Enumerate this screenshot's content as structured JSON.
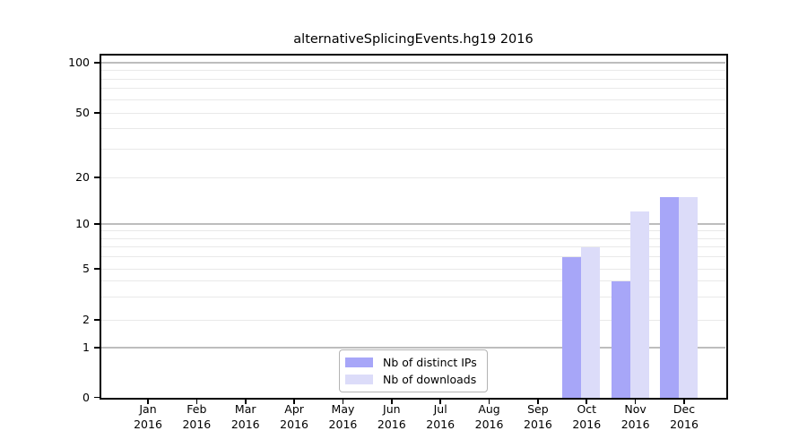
{
  "title": "alternativeSplicingEvents.hg19 2016",
  "chart_data": {
    "type": "bar",
    "title": "alternativeSplicingEvents.hg19 2016",
    "categories": [
      "Jan",
      "Feb",
      "Mar",
      "Apr",
      "May",
      "Jun",
      "Jul",
      "Aug",
      "Sep",
      "Oct",
      "Nov",
      "Dec"
    ],
    "x_year_label": "2016",
    "series": [
      {
        "name": "Nb of distinct IPs",
        "color": "#a7a6f8",
        "values": [
          0,
          0,
          0,
          0,
          0,
          0,
          0,
          0,
          0,
          6,
          4,
          15
        ]
      },
      {
        "name": "Nb of downloads",
        "color": "#dcdcf9",
        "values": [
          0,
          0,
          0,
          0,
          0,
          0,
          0,
          0,
          0,
          7,
          12,
          15
        ]
      }
    ],
    "xlabel": "",
    "ylabel": "",
    "y_axis": {
      "scale": "log-like, linear below 1",
      "ylim": [
        0,
        100
      ],
      "tick_labels": [
        "100",
        "50",
        "20",
        "10",
        "5",
        "2",
        "1",
        "0"
      ],
      "tick_values": [
        100,
        50,
        20,
        10,
        5,
        2,
        1,
        0
      ],
      "minor_gridline_values": [
        3,
        4,
        6,
        7,
        8,
        9,
        30,
        40,
        60,
        70,
        80,
        90
      ],
      "decade_gridline_values": [
        1,
        10,
        100
      ]
    },
    "grid": "horizontal gridlines on",
    "legend_position": "inside, bottom center"
  },
  "legend": {
    "items": [
      {
        "label": "Nb of distinct IPs",
        "color": "#a7a6f8"
      },
      {
        "label": "Nb of downloads",
        "color": "#dcdcf9"
      }
    ]
  },
  "colors": {
    "background": "#ffffff",
    "spine": "#000000",
    "text": "#000000",
    "minor_grid": "#e9e9e9",
    "decade_grid": "#bdbdbd",
    "legend_border": "#b3b3b3"
  }
}
